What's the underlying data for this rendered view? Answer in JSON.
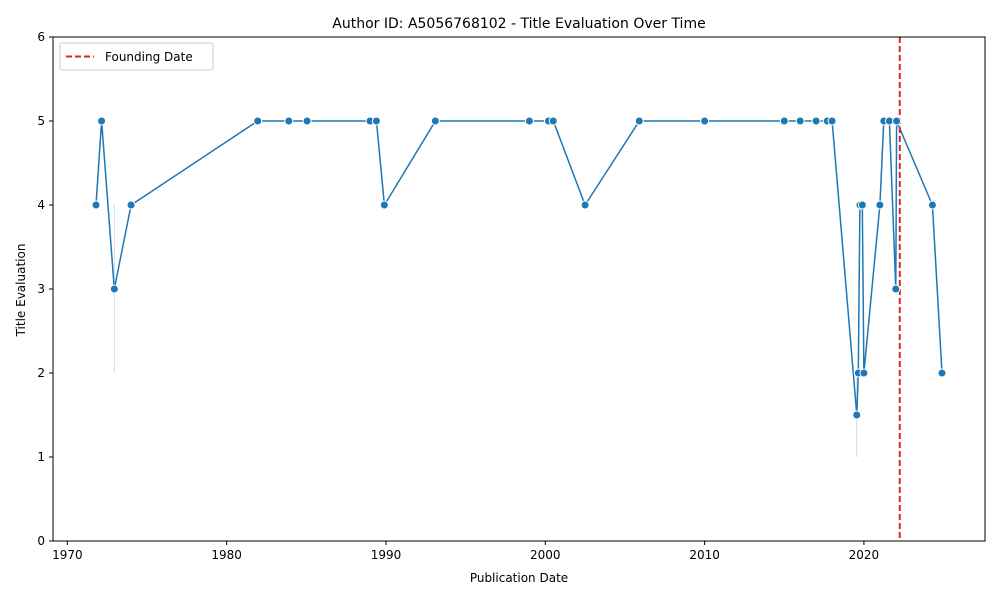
{
  "chart_data": {
    "type": "line",
    "title": "Author ID: A5056768102 - Title Evaluation Over Time",
    "xlabel": "Publication Date",
    "ylabel": "Title Evaluation",
    "xlim": [
      1969.1,
      2027.6
    ],
    "ylim": [
      0,
      6
    ],
    "x_ticks": [
      1970,
      1980,
      1990,
      2000,
      2010,
      2020
    ],
    "y_ticks": [
      0,
      1,
      2,
      3,
      4,
      5,
      6
    ],
    "grid": false,
    "legend": {
      "placement": "top-left",
      "entries": [
        {
          "label": "Founding Date",
          "color": "#d62728",
          "style": "dashed"
        }
      ]
    },
    "series_color": "#1f77b4",
    "founding_date": 2022.25,
    "points": [
      {
        "x": 1971.8,
        "y": 4
      },
      {
        "x": 1972.15,
        "y": 5
      },
      {
        "x": 1972.95,
        "y": 3,
        "ci": [
          2,
          4
        ]
      },
      {
        "x": 1974.0,
        "y": 4
      },
      {
        "x": 1981.95,
        "y": 5
      },
      {
        "x": 1983.9,
        "y": 5
      },
      {
        "x": 1985.05,
        "y": 5
      },
      {
        "x": 1989.0,
        "y": 5
      },
      {
        "x": 1989.4,
        "y": 5
      },
      {
        "x": 1989.9,
        "y": 4
      },
      {
        "x": 1993.1,
        "y": 5
      },
      {
        "x": 1999.0,
        "y": 5
      },
      {
        "x": 2000.2,
        "y": 5
      },
      {
        "x": 2000.5,
        "y": 5
      },
      {
        "x": 2002.5,
        "y": 4
      },
      {
        "x": 2005.9,
        "y": 5
      },
      {
        "x": 2010.0,
        "y": 5
      },
      {
        "x": 2015.0,
        "y": 5
      },
      {
        "x": 2016.0,
        "y": 5
      },
      {
        "x": 2017.0,
        "y": 5
      },
      {
        "x": 2017.7,
        "y": 5
      },
      {
        "x": 2018.0,
        "y": 5
      },
      {
        "x": 2019.55,
        "y": 1.5,
        "ci": [
          1,
          2
        ]
      },
      {
        "x": 2019.65,
        "y": 2
      },
      {
        "x": 2019.75,
        "y": 4
      },
      {
        "x": 2019.9,
        "y": 4
      },
      {
        "x": 2020.0,
        "y": 2
      },
      {
        "x": 2021.0,
        "y": 4
      },
      {
        "x": 2021.25,
        "y": 5
      },
      {
        "x": 2021.6,
        "y": 5
      },
      {
        "x": 2022.0,
        "y": 3
      },
      {
        "x": 2022.05,
        "y": 5
      },
      {
        "x": 2024.3,
        "y": 4
      },
      {
        "x": 2024.9,
        "y": 2
      }
    ]
  }
}
